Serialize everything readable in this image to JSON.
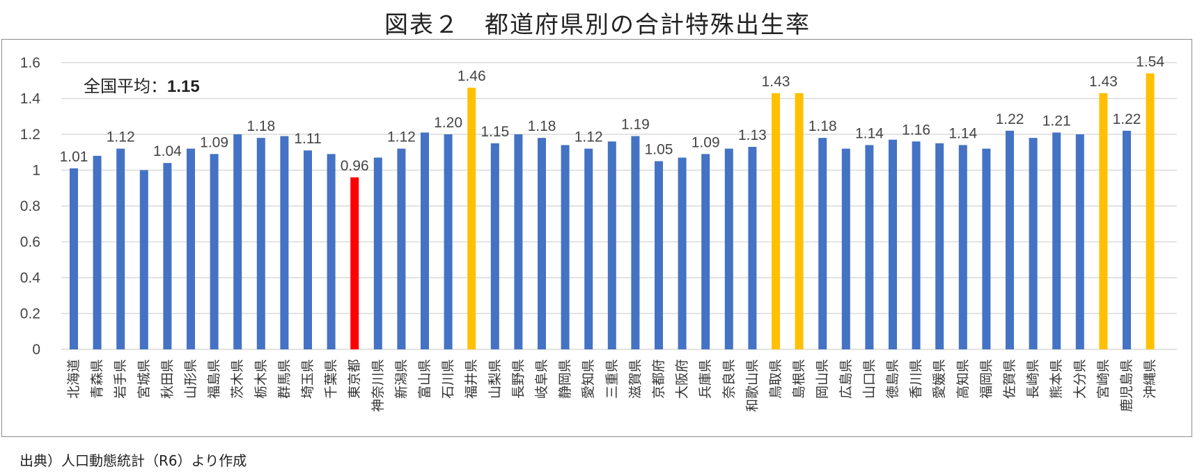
{
  "title": "図表２　都道府県別の合計特殊出生率",
  "average_label": "全国平均：",
  "average_value": "1.15",
  "source": "出典）人口動態統計（R6）より作成",
  "colors": {
    "normal": "#4472c4",
    "tokyo": "#ff0000",
    "top": "#ffc000",
    "grid": "#d9d9d9"
  },
  "chart_data": {
    "type": "bar",
    "ylim": [
      0,
      1.6
    ],
    "yticks": [
      "0",
      "0.2",
      "0.4",
      "0.6",
      "0.8",
      "1",
      "1.2",
      "1.4",
      "1.6"
    ],
    "grid": true,
    "categories": [
      "北海道",
      "青森県",
      "岩手県",
      "宮城県",
      "秋田県",
      "山形県",
      "福島県",
      "茨木県",
      "栃木県",
      "群馬県",
      "埼玉県",
      "千葉県",
      "東京都",
      "神奈川県",
      "新潟県",
      "富山県",
      "石川県",
      "福井県",
      "山梨県",
      "長野県",
      "岐阜県",
      "静岡県",
      "愛知県",
      "三重県",
      "滋賀県",
      "京都府",
      "大阪府",
      "兵庫県",
      "奈良県",
      "和歌山県",
      "鳥取県",
      "島根県",
      "岡山県",
      "広島県",
      "山口県",
      "徳島県",
      "香川県",
      "愛媛県",
      "高知県",
      "福岡県",
      "佐賀県",
      "長崎県",
      "熊本県",
      "大分県",
      "宮崎県",
      "鹿児島県",
      "沖縄県"
    ],
    "values": [
      1.01,
      1.08,
      1.12,
      1.0,
      1.04,
      1.12,
      1.09,
      1.2,
      1.18,
      1.19,
      1.11,
      1.09,
      0.96,
      1.07,
      1.12,
      1.21,
      1.2,
      1.46,
      1.15,
      1.2,
      1.18,
      1.14,
      1.12,
      1.16,
      1.19,
      1.05,
      1.07,
      1.09,
      1.12,
      1.13,
      1.43,
      1.43,
      1.18,
      1.12,
      1.14,
      1.17,
      1.16,
      1.15,
      1.14,
      1.12,
      1.22,
      1.18,
      1.21,
      1.2,
      1.43,
      1.22,
      1.54
    ],
    "highlight": [
      "normal",
      "normal",
      "normal",
      "normal",
      "normal",
      "normal",
      "normal",
      "normal",
      "normal",
      "normal",
      "normal",
      "normal",
      "tokyo",
      "normal",
      "normal",
      "normal",
      "normal",
      "top",
      "normal",
      "normal",
      "normal",
      "normal",
      "normal",
      "normal",
      "normal",
      "normal",
      "normal",
      "normal",
      "normal",
      "normal",
      "top",
      "top",
      "normal",
      "normal",
      "normal",
      "normal",
      "normal",
      "normal",
      "normal",
      "normal",
      "normal",
      "normal",
      "normal",
      "normal",
      "top",
      "normal",
      "top"
    ],
    "data_labels": [
      "1.01",
      "",
      "1.12",
      "",
      "1.04",
      "",
      "1.09",
      "",
      "1.18",
      "",
      "1.11",
      "",
      "0.96",
      "",
      "1.12",
      "",
      "1.20",
      "1.46",
      "1.15",
      "",
      "1.18",
      "",
      "1.12",
      "",
      "1.19",
      "1.05",
      "",
      "1.09",
      "",
      "1.13",
      "1.43",
      "",
      "1.18",
      "",
      "1.14",
      "",
      "1.16",
      "",
      "1.14",
      "",
      "1.22",
      "",
      "1.21",
      "",
      "1.43",
      "1.22",
      "1.54"
    ]
  }
}
